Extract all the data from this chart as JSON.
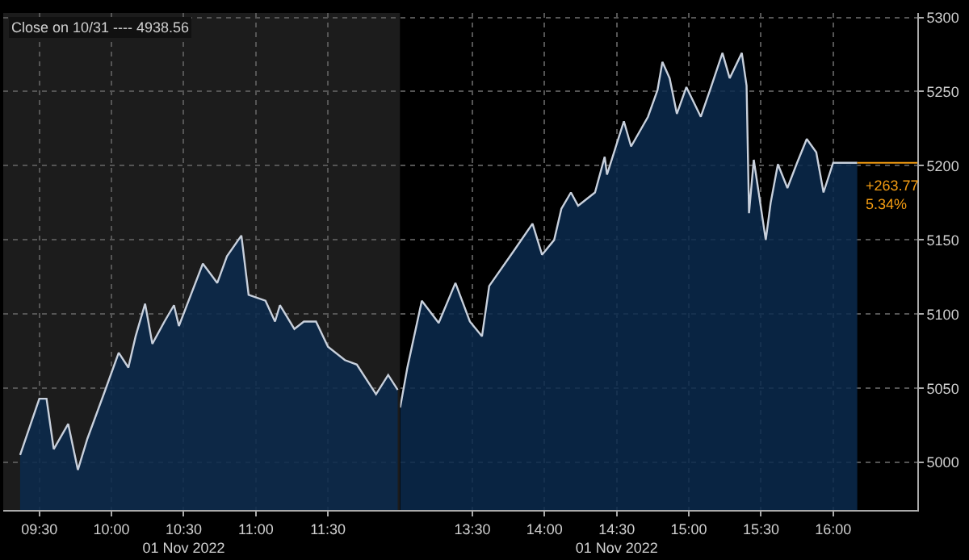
{
  "chart_data": [
    {
      "type": "area",
      "x": [
        9.367,
        9.5,
        9.55,
        9.6,
        9.7,
        9.767,
        9.833,
        9.95,
        10.05,
        10.117,
        10.167,
        10.233,
        10.283,
        10.367,
        10.433,
        10.467,
        10.55,
        10.633,
        10.733,
        10.8,
        10.9,
        10.95,
        11.067,
        11.133,
        11.167,
        11.267,
        11.333,
        11.417,
        11.5,
        11.617,
        11.7,
        11.833,
        11.917,
        11.983
      ],
      "series": [
        {
          "color": "#c8d0dc",
          "values": [
            5005,
            5043,
            5043,
            5009,
            5026,
            4995,
            5016,
            5047,
            5074,
            5064,
            5085,
            5107,
            5080,
            5095,
            5106,
            5092,
            5113,
            5134,
            5121,
            5139,
            5153,
            5113,
            5109,
            5095,
            5106,
            5090,
            5095,
            5095,
            5078,
            5069,
            5066,
            5046,
            5059,
            5049
          ]
        }
      ],
      "xlim": [
        9.25,
        12
      ],
      "xticks": [
        {
          "value": 9.5,
          "label": "09:30"
        },
        {
          "value": 10,
          "label": "10:00"
        },
        {
          "value": 10.5,
          "label": "10:30\n01 Nov 2022"
        },
        {
          "value": 11,
          "label": "11:00"
        },
        {
          "value": 11.5,
          "label": "11:30"
        }
      ],
      "ylim": [
        4968,
        5303
      ],
      "yticks": [
        5000,
        5050,
        5100,
        5150,
        5200,
        5250,
        5300
      ],
      "tick_labels": "x",
      "grid": true,
      "line_style": "solid",
      "marker": "none",
      "bands": [
        {
          "axis": "x",
          "from": 9.25,
          "to": 12,
          "color": "#1c1c1c"
        }
      ],
      "annotations": [
        "Close on 10/31 ---- 4938.56"
      ]
    },
    {
      "type": "area",
      "x": [
        13.0,
        13.05,
        13.15,
        13.267,
        13.383,
        13.483,
        13.567,
        13.617,
        13.783,
        13.917,
        13.983,
        14.067,
        14.117,
        14.183,
        14.233,
        14.35,
        14.417,
        14.433,
        14.55,
        14.6,
        14.717,
        14.783,
        14.817,
        14.867,
        14.917,
        14.983,
        15.083,
        15.15,
        15.233,
        15.283,
        15.367,
        15.4,
        15.417,
        15.45,
        15.533,
        15.567,
        15.617,
        15.683,
        15.75,
        15.817,
        15.883,
        15.933,
        16.0,
        16.167
      ],
      "series": [
        {
          "color": "#c8d0dc",
          "values": [
            5037,
            5064,
            5109,
            5094,
            5121,
            5095,
            5085,
            5119,
            5142,
            5161,
            5140,
            5150,
            5171,
            5182,
            5173,
            5182,
            5206,
            5194,
            5230,
            5213,
            5233,
            5251,
            5270,
            5259,
            5235,
            5253,
            5233,
            5252,
            5276,
            5259,
            5276,
            5254,
            5168,
            5204,
            5150,
            5175,
            5201,
            5185,
            5202,
            5218,
            5209,
            5182,
            5202,
            5202
          ]
        }
      ],
      "xlim": [
        13,
        16.583
      ],
      "xticks": [
        {
          "value": 13.5,
          "label": "13:30"
        },
        {
          "value": 14,
          "label": "14:00"
        },
        {
          "value": 14.5,
          "label": "14:30\n01 Nov 2022"
        },
        {
          "value": 15,
          "label": "15:00"
        },
        {
          "value": 15.5,
          "label": "15:30"
        },
        {
          "value": 16,
          "label": "16:00"
        }
      ],
      "ylim": [
        4968,
        5303
      ],
      "yticks": [
        5000,
        5050,
        5100,
        5150,
        5200,
        5250,
        5300
      ],
      "grid": true,
      "line_style": "solid",
      "marker": "none",
      "ref_lines": [
        {
          "axis": "y",
          "value": 5202,
          "color": "#f39c12"
        }
      ],
      "annotations": [
        {
          "text": "+263.77\n5.34%",
          "x": 16.167,
          "y": 5202
        }
      ]
    }
  ]
}
